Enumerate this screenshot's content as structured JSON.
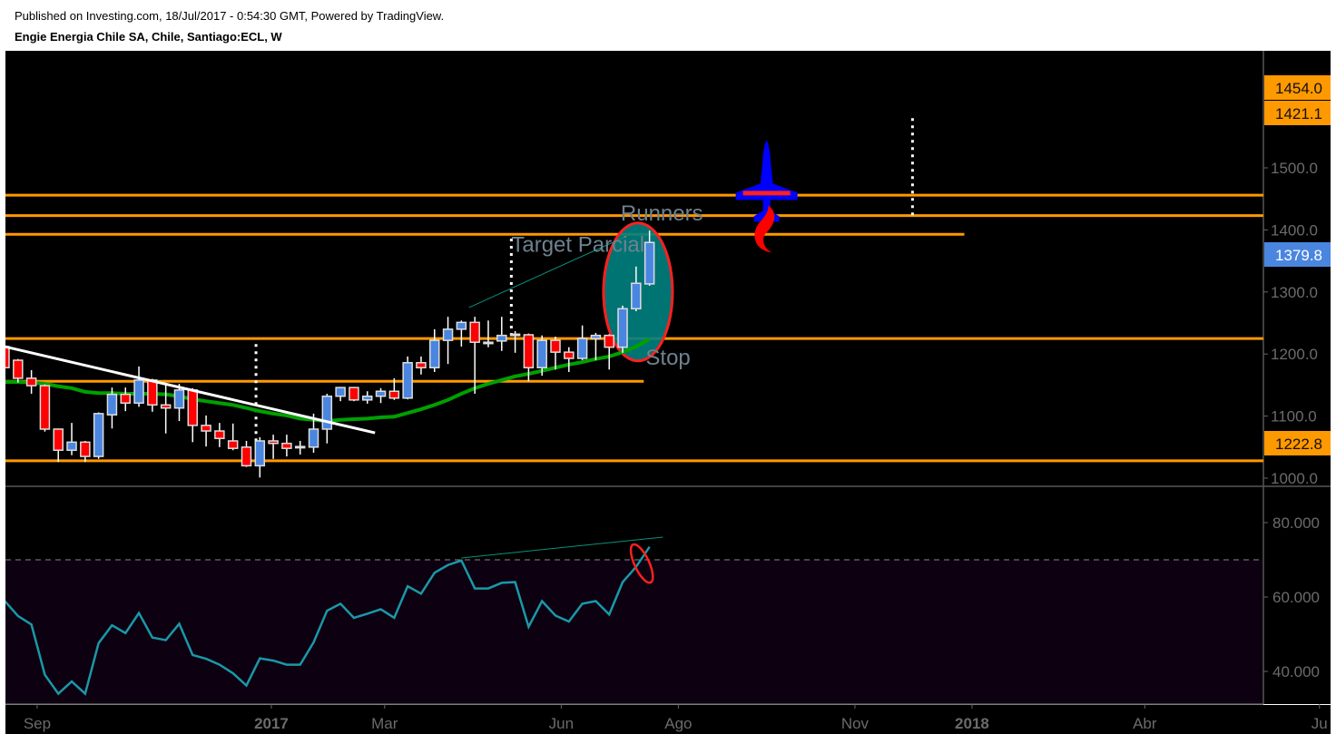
{
  "header": {
    "published": "Published on Investing.com, 18/Jul/2017 - 0:54:30 GMT, Powered by TradingView.",
    "symbol": "Engie Energia Chile SA, Chile, Santiago:ECL, W"
  },
  "colors": {
    "up": "#4a86e0",
    "down": "#ff0000",
    "wick": "#ffffff",
    "level": "#ff9900",
    "ma": "#00a000",
    "rsi": "#1a98a8",
    "trend": "#ffffff",
    "ellipse_fill": "#008080",
    "ellipse_stroke": "#ff2020",
    "rocket": "#0000ff",
    "flame": "#ff0000"
  },
  "chart_data": [
    {
      "type": "candlestick",
      "interval": "W",
      "ylim": [
        1000,
        1600
      ],
      "yticks": [
        1000,
        1100,
        1200,
        1300,
        1400,
        1500
      ],
      "ytick_labels": [
        "1000.0",
        "1100.0",
        "1200.0",
        "1300.0",
        "1400.0",
        "1500.0"
      ],
      "price_tags": [
        {
          "label": "1454.0",
          "color": "#ff9900"
        },
        {
          "label": "1421.1",
          "color": "#ff9900"
        },
        {
          "label": "1379.8",
          "color": "#4a86e0"
        },
        {
          "label": "1222.8",
          "color": "#ff9900"
        }
      ],
      "xticks": [
        {
          "date": "2016-09-01",
          "label": "Sep",
          "bold": false
        },
        {
          "date": "2017-01-01",
          "label": "2017",
          "bold": true
        },
        {
          "date": "2017-03-01",
          "label": "Mar",
          "bold": false
        },
        {
          "date": "2017-06-01",
          "label": "Jun",
          "bold": false
        },
        {
          "date": "2017-08-01",
          "label": "Ago",
          "bold": false
        },
        {
          "date": "2017-11-01",
          "label": "Nov",
          "bold": false
        },
        {
          "date": "2018-01-01",
          "label": "2018",
          "bold": true
        },
        {
          "date": "2018-04-01",
          "label": "Abr",
          "bold": false
        },
        {
          "date": "2018-07-01",
          "label": "Ju",
          "bold": false
        }
      ],
      "dates": [
        "2016-08-15",
        "2016-08-22",
        "2016-08-29",
        "2016-09-05",
        "2016-09-12",
        "2016-09-19",
        "2016-09-26",
        "2016-10-03",
        "2016-10-10",
        "2016-10-17",
        "2016-10-24",
        "2016-10-31",
        "2016-11-07",
        "2016-11-14",
        "2016-11-21",
        "2016-11-28",
        "2016-12-05",
        "2016-12-12",
        "2016-12-19",
        "2016-12-26",
        "2017-01-02",
        "2017-01-09",
        "2017-01-16",
        "2017-01-23",
        "2017-01-30",
        "2017-02-06",
        "2017-02-13",
        "2017-02-20",
        "2017-02-27",
        "2017-03-06",
        "2017-03-13",
        "2017-03-20",
        "2017-03-27",
        "2017-04-03",
        "2017-04-10",
        "2017-04-17",
        "2017-04-24",
        "2017-05-01",
        "2017-05-08",
        "2017-05-15",
        "2017-05-22",
        "2017-05-29",
        "2017-06-05",
        "2017-06-12",
        "2017-06-19",
        "2017-06-26",
        "2017-07-03",
        "2017-07-10",
        "2017-07-17"
      ],
      "ohlc": [
        [
          1212,
          1214,
          1175,
          1178
        ],
        [
          1190,
          1192,
          1154,
          1161
        ],
        [
          1161,
          1174,
          1136,
          1149
        ],
        [
          1149,
          1151,
          1075,
          1079
        ],
        [
          1079,
          1080,
          1026,
          1045
        ],
        [
          1045,
          1089,
          1037,
          1058
        ],
        [
          1058,
          1060,
          1026,
          1035
        ],
        [
          1035,
          1106,
          1031,
          1104
        ],
        [
          1102,
          1146,
          1080,
          1135
        ],
        [
          1135,
          1146,
          1108,
          1121
        ],
        [
          1121,
          1180,
          1115,
          1158
        ],
        [
          1158,
          1160,
          1107,
          1118
        ],
        [
          1118,
          1151,
          1072,
          1113
        ],
        [
          1113,
          1152,
          1092,
          1142
        ],
        [
          1142,
          1145,
          1058,
          1085
        ],
        [
          1085,
          1101,
          1051,
          1076
        ],
        [
          1076,
          1089,
          1050,
          1064
        ],
        [
          1060,
          1088,
          1045,
          1048
        ],
        [
          1050,
          1060,
          1018,
          1020
        ],
        [
          1020,
          1066,
          1001,
          1060
        ],
        [
          1060,
          1070,
          1031,
          1056
        ],
        [
          1056,
          1070,
          1035,
          1048
        ],
        [
          1050,
          1060,
          1038,
          1051
        ],
        [
          1050,
          1104,
          1041,
          1079
        ],
        [
          1079,
          1136,
          1056,
          1132
        ],
        [
          1132,
          1147,
          1124,
          1146
        ],
        [
          1146,
          1147,
          1124,
          1126
        ],
        [
          1126,
          1140,
          1120,
          1132
        ],
        [
          1132,
          1145,
          1121,
          1140
        ],
        [
          1140,
          1161,
          1126,
          1129
        ],
        [
          1129,
          1196,
          1127,
          1186
        ],
        [
          1186,
          1196,
          1167,
          1178
        ],
        [
          1178,
          1240,
          1171,
          1222
        ],
        [
          1222,
          1260,
          1184,
          1240
        ],
        [
          1240,
          1254,
          1212,
          1251
        ],
        [
          1251,
          1260,
          1136,
          1219
        ],
        [
          1219,
          1254,
          1211,
          1218
        ],
        [
          1221,
          1260,
          1205,
          1230
        ],
        [
          1230,
          1237,
          1202,
          1232
        ],
        [
          1231,
          1233,
          1156,
          1178
        ],
        [
          1178,
          1230,
          1165,
          1222
        ],
        [
          1222,
          1228,
          1175,
          1203
        ],
        [
          1203,
          1211,
          1171,
          1193
        ],
        [
          1193,
          1246,
          1190,
          1225
        ],
        [
          1225,
          1234,
          1190,
          1230
        ],
        [
          1230,
          1232,
          1175,
          1211
        ],
        [
          1211,
          1278,
          1202,
          1273
        ],
        [
          1273,
          1341,
          1269,
          1314
        ],
        [
          1313,
          1399,
          1310,
          1379.8
        ]
      ],
      "moving_average": [
        1155,
        1155,
        1154,
        1152,
        1148,
        1145,
        1139,
        1137,
        1137,
        1136,
        1136,
        1136,
        1135,
        1132,
        1127,
        1124,
        1121,
        1118,
        1113,
        1108,
        1104,
        1101,
        1096,
        1094,
        1092,
        1094,
        1095,
        1096,
        1098,
        1099,
        1105,
        1111,
        1118,
        1126,
        1136,
        1145,
        1152,
        1158,
        1164,
        1168,
        1173,
        1178,
        1183,
        1187,
        1192,
        1196,
        1203,
        1212,
        1224
      ],
      "levels": [
        {
          "price": 1456,
          "from": "2016-08-15",
          "to": null
        },
        {
          "price": 1423,
          "from": "2016-08-15",
          "to": null
        },
        {
          "price": 1393,
          "from": "2016-08-15",
          "to": "2017-12-28"
        },
        {
          "price": 1225,
          "from": "2016-08-15",
          "to": null
        },
        {
          "price": 1156,
          "from": "2016-08-15",
          "to": "2017-07-14"
        },
        {
          "price": 1028,
          "from": "2016-08-15",
          "to": null
        }
      ],
      "trendline": {
        "from": [
          "2016-08-15",
          1212
        ],
        "to": [
          "2017-02-24",
          1073
        ]
      },
      "thin_line": {
        "from": [
          "2017-04-14",
          1275
        ],
        "to": [
          "2017-07-05",
          1390
        ]
      },
      "dotted_verticals": [
        {
          "date": "2016-12-24",
          "from": 1216,
          "to": 1051
        },
        {
          "date": "2017-05-06",
          "from": 1386,
          "to": 1233
        },
        {
          "date": "2017-12-01",
          "from": 1580,
          "to": 1417
        }
      ],
      "ellipse_center": [
        "2017-07-11",
        1300
      ],
      "annotations": [
        {
          "text": "Runners",
          "date": "2017-07-02",
          "price": 1415
        },
        {
          "text": "Target Parcial",
          "date": "2017-05-06",
          "price": 1365
        },
        {
          "text": "Stop",
          "date": "2017-07-15",
          "price": 1183
        }
      ],
      "rocket": {
        "date": "2017-09-16",
        "price": 1460
      }
    },
    {
      "type": "line",
      "ylim": [
        30,
        88
      ],
      "yticks": [
        40,
        60,
        80
      ],
      "ytick_labels": [
        "40.000",
        "60.000",
        "80.000"
      ],
      "overbought": 70,
      "values": [
        59.0,
        54.9,
        52.6,
        39.1,
        34.0,
        37.3,
        34.0,
        47.6,
        52.4,
        50.3,
        55.7,
        49.1,
        48.4,
        52.8,
        44.4,
        43.4,
        41.8,
        39.5,
        36.2,
        43.5,
        42.9,
        41.8,
        41.8,
        47.8,
        56.3,
        58.2,
        54.4,
        55.5,
        56.7,
        54.4,
        62.9,
        60.9,
        66.5,
        68.6,
        69.8,
        62.3,
        62.3,
        63.8,
        64.0,
        52.0,
        58.9,
        55.0,
        53.4,
        58.2,
        58.9,
        55.3,
        64.0,
        68.1,
        73.5
      ],
      "trendline": {
        "from": [
          "2017-04-10",
          70.5
        ],
        "to": [
          "2017-07-24",
          76.1
        ]
      },
      "ellipse_center": [
        "2017-07-13",
        69
      ]
    }
  ]
}
